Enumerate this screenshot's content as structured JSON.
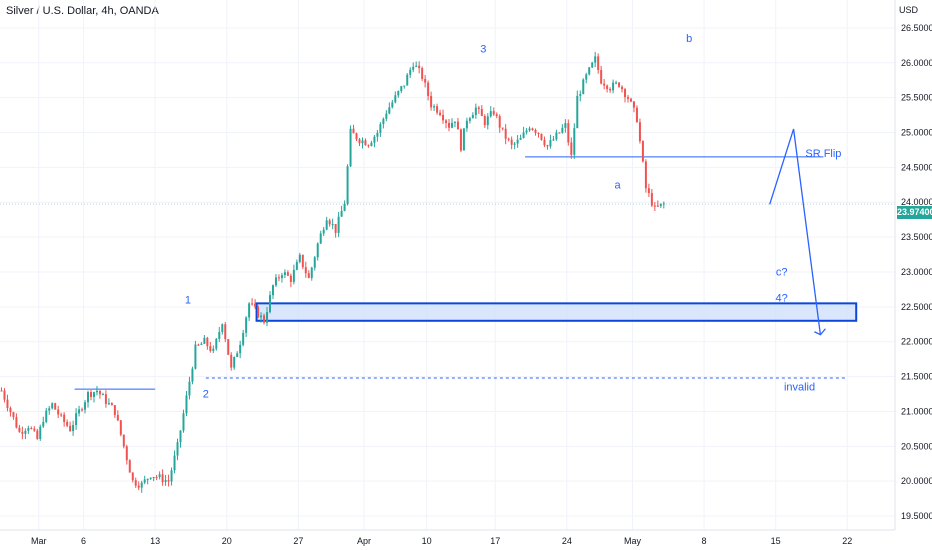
{
  "chart_title": "Silver / U.S. Dollar, 4h, OANDA",
  "currency_label": "USD",
  "last_price": "23.97400",
  "colors": {
    "up": "#26a69a",
    "down": "#ef5350",
    "annotation": "#2962ff",
    "zone_fill": "#cfe0fb"
  },
  "chart_data": {
    "type": "candlestick",
    "y_ticks": [
      "19.50000",
      "20.00000",
      "20.50000",
      "21.00000",
      "21.50000",
      "22.00000",
      "22.50000",
      "23.00000",
      "23.50000",
      "24.00000",
      "24.50000",
      "25.00000",
      "25.50000",
      "26.00000",
      "26.50000"
    ],
    "ylim": [
      19.3,
      26.9
    ],
    "x_ticks": [
      "Mar",
      "6",
      "13",
      "20",
      "27",
      "Apr",
      "10",
      "17",
      "24",
      "May",
      "8",
      "15",
      "22"
    ],
    "price_path": [
      [
        0,
        21.3
      ],
      [
        3,
        21.0
      ],
      [
        6,
        20.7
      ],
      [
        9,
        20.8
      ],
      [
        12,
        20.6
      ],
      [
        14,
        20.9
      ],
      [
        17,
        21.1
      ],
      [
        20,
        20.9
      ],
      [
        23,
        20.75
      ],
      [
        26,
        21.0
      ],
      [
        29,
        21.25
      ],
      [
        32,
        21.3
      ],
      [
        35,
        21.15
      ],
      [
        38,
        21.0
      ],
      [
        41,
        20.5
      ],
      [
        44,
        20.0
      ],
      [
        47,
        19.95
      ],
      [
        50,
        20.1
      ],
      [
        53,
        20.05
      ],
      [
        56,
        20.0
      ],
      [
        59,
        20.5
      ],
      [
        62,
        21.2
      ],
      [
        65,
        21.9
      ],
      [
        68,
        22.0
      ],
      [
        71,
        21.85
      ],
      [
        74,
        22.3
      ],
      [
        77,
        21.6
      ],
      [
        80,
        22.0
      ],
      [
        83,
        22.55
      ],
      [
        86,
        22.4
      ],
      [
        88,
        22.3
      ],
      [
        91,
        22.8
      ],
      [
        94,
        23.0
      ],
      [
        97,
        22.9
      ],
      [
        100,
        23.2
      ],
      [
        103,
        22.9
      ],
      [
        106,
        23.4
      ],
      [
        109,
        23.8
      ],
      [
        112,
        23.6
      ],
      [
        115,
        24.0
      ],
      [
        117,
        25.0
      ],
      [
        120,
        24.9
      ],
      [
        123,
        24.85
      ],
      [
        126,
        25.0
      ],
      [
        129,
        25.3
      ],
      [
        132,
        25.5
      ],
      [
        135,
        25.7
      ],
      [
        138,
        26.0
      ],
      [
        141,
        25.8
      ],
      [
        144,
        25.4
      ],
      [
        147,
        25.3
      ],
      [
        150,
        25.1
      ],
      [
        152,
        25.2
      ],
      [
        154,
        24.8
      ],
      [
        156,
        25.2
      ],
      [
        159,
        25.35
      ],
      [
        162,
        25.15
      ],
      [
        165,
        25.3
      ],
      [
        168,
        25.0
      ],
      [
        171,
        24.8
      ],
      [
        174,
        24.9
      ],
      [
        177,
        25.1
      ],
      [
        180,
        25.0
      ],
      [
        183,
        24.8
      ],
      [
        186,
        24.95
      ],
      [
        189,
        25.1
      ],
      [
        191,
        24.65
      ],
      [
        193,
        25.5
      ],
      [
        196,
        25.8
      ],
      [
        199,
        26.05
      ],
      [
        201,
        25.75
      ],
      [
        204,
        25.65
      ],
      [
        207,
        25.7
      ],
      [
        210,
        25.5
      ],
      [
        213,
        25.2
      ],
      [
        216,
        24.2
      ],
      [
        219,
        23.9
      ],
      [
        222,
        23.974
      ]
    ],
    "x_end": 222,
    "annotations": [
      {
        "label": "1",
        "x": 63,
        "y": 22.55
      },
      {
        "label": "2",
        "x": 69,
        "y": 21.2
      },
      {
        "label": "3",
        "x": 162,
        "y": 26.15
      },
      {
        "label": "a",
        "x": 207,
        "y": 24.2
      },
      {
        "label": "b",
        "x": 231,
        "y": 26.3
      },
      {
        "label": "c?",
        "x": 262,
        "y": 22.95
      },
      {
        "label": "4?",
        "x": 262,
        "y": 22.58
      },
      {
        "label": "SR Flip",
        "x": 276,
        "y": 24.65
      },
      {
        "label": "invalid",
        "x": 268,
        "y": 21.3
      }
    ],
    "levels": [
      {
        "name": "sr-flip",
        "y": 24.65,
        "x_start": 176,
        "x_end": 276
      },
      {
        "name": "invalid",
        "y": 21.48,
        "x_start": 69,
        "x_end": 284,
        "dashed": true
      },
      {
        "name": "early-resistance",
        "y": 21.32,
        "x_start": 25,
        "x_end": 52
      }
    ],
    "zone": {
      "y_low": 22.3,
      "y_high": 22.55,
      "x_start": 86,
      "x_end": 287
    },
    "projection": [
      [
        258,
        23.97
      ],
      [
        266,
        25.05
      ],
      [
        275,
        22.1
      ]
    ]
  }
}
